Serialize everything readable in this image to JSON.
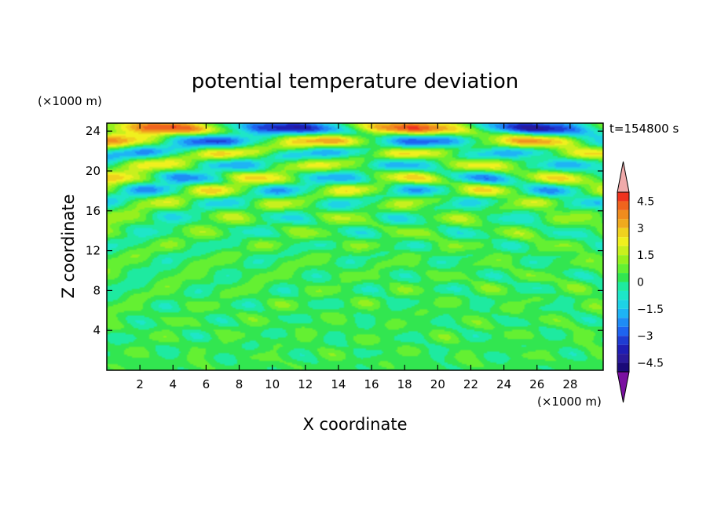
{
  "chart_data": {
    "type": "heatmap",
    "title": "potential temperature deviation",
    "xlabel": "X coordinate",
    "ylabel": "Z coordinate",
    "x_unit": "(×1000 m)",
    "y_unit": "(×1000 m)",
    "time_label": "t=154800 s",
    "xlim": [
      0,
      30
    ],
    "ylim": [
      0,
      24.8
    ],
    "x_ticks": [
      "2",
      "4",
      "6",
      "8",
      "10",
      "12",
      "14",
      "16",
      "18",
      "20",
      "22",
      "24",
      "26",
      "28"
    ],
    "x_tick_values": [
      2,
      4,
      6,
      8,
      10,
      12,
      14,
      16,
      18,
      20,
      22,
      24,
      26,
      28
    ],
    "y_ticks": [
      "4",
      "8",
      "12",
      "16",
      "20",
      "24"
    ],
    "y_tick_values": [
      4,
      8,
      12,
      16,
      20,
      24
    ],
    "colorbar": {
      "levels": [
        -5,
        -4.5,
        -4,
        -3.5,
        -3,
        -2.5,
        -2,
        -1.5,
        -1,
        -0.5,
        0,
        0.5,
        1,
        1.5,
        2,
        2.5,
        3,
        3.5,
        4,
        4.5,
        5
      ],
      "tick_labels": [
        "4.5",
        "3",
        "1.5",
        "0",
        "−1.5",
        "−3",
        "−4.5"
      ],
      "tick_values": [
        4.5,
        3,
        1.5,
        0,
        -1.5,
        -3,
        -4.5
      ],
      "colors": [
        "#1a0a78",
        "#2a1a9a",
        "#1e1eb4",
        "#1e3cd2",
        "#1e64f0",
        "#1e8cf5",
        "#1eb4f5",
        "#1ed2e6",
        "#1ee6c8",
        "#1eeaa0",
        "#32e650",
        "#64f032",
        "#96f01e",
        "#c8f01e",
        "#f0f01e",
        "#f0d21e",
        "#f0aa1e",
        "#f08c1e",
        "#f0641e",
        "#f0321e"
      ],
      "over_color": "#f0aaaa",
      "under_color": "#7a10a0"
    },
    "bands": [
      {
        "z": 24.3,
        "amp": 4.5
      },
      {
        "z": 23.0,
        "amp": 3.6
      },
      {
        "z": 21.8,
        "amp": 2.6
      },
      {
        "z": 20.6,
        "amp": 2.4
      },
      {
        "z": 19.3,
        "amp": 2.8
      },
      {
        "z": 18.1,
        "amp": 2.6
      },
      {
        "z": 16.8,
        "amp": 1.7
      },
      {
        "z": 15.3,
        "amp": 1.4
      },
      {
        "z": 13.8,
        "amp": 1.1
      },
      {
        "z": 12.4,
        "amp": 0.9
      },
      {
        "z": 11.0,
        "amp": 0.9
      },
      {
        "z": 9.6,
        "amp": 0.8
      },
      {
        "z": 8.2,
        "amp": 0.8
      },
      {
        "z": 6.6,
        "amp": 0.7
      },
      {
        "z": 5.0,
        "amp": 0.6
      },
      {
        "z": 3.4,
        "amp": 0.6
      },
      {
        "z": 1.6,
        "amp": 0.5
      }
    ]
  }
}
